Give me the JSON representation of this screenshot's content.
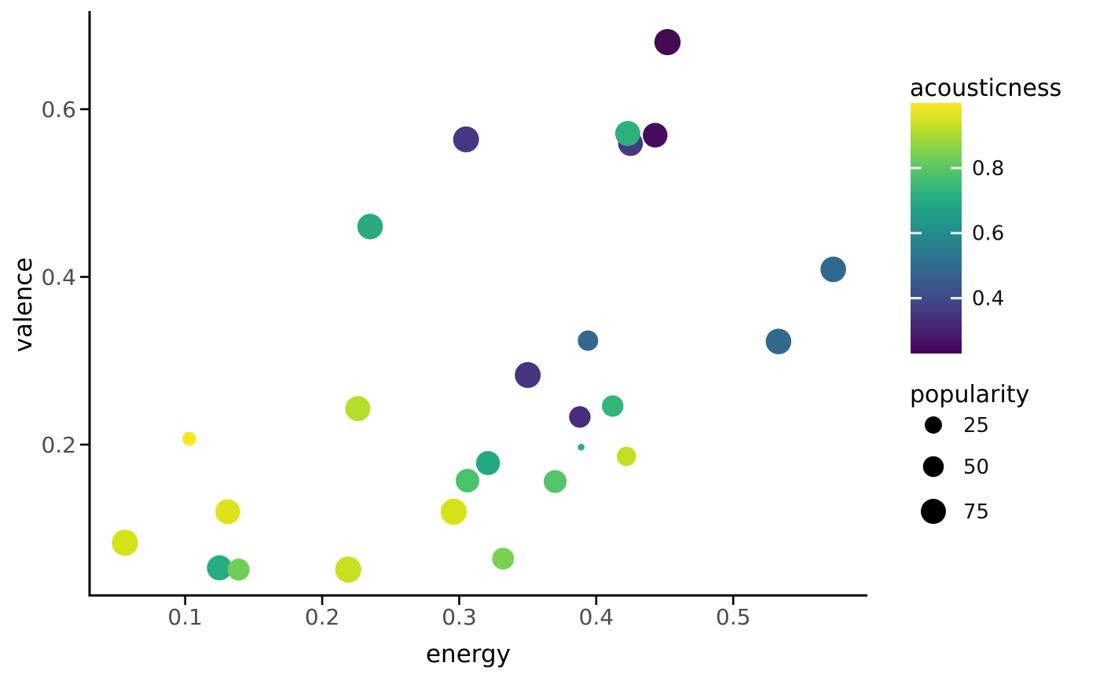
{
  "chart_data": {
    "type": "scatter",
    "title": "",
    "xlabel": "energy",
    "ylabel": "valence",
    "x_axis": {
      "ticks": [
        0.1,
        0.2,
        0.3,
        0.4,
        0.5
      ],
      "range": [
        0.03,
        0.598
      ],
      "grid": false
    },
    "y_axis": {
      "ticks": [
        0.6,
        0.4,
        0.2
      ],
      "range": [
        0.02,
        0.717
      ],
      "grid": false
    },
    "color_legend": {
      "title": "acousticness",
      "colormap": "viridis",
      "domain": [
        0.23,
        1.0
      ],
      "ticks": [
        0.8,
        0.6,
        0.4
      ],
      "tick_dash_color": "#e8e8e8"
    },
    "size_legend": {
      "title": "popularity",
      "items": [
        {
          "label": "25",
          "r": 11.0
        },
        {
          "label": "50",
          "r": 13.3
        },
        {
          "label": "75",
          "r": 16.0
        }
      ],
      "dot_color": "#000000"
    },
    "points": [
      {
        "energy": 0.452,
        "valence": 0.68,
        "acousticness": 0.25,
        "popularity": 82,
        "color": "#440a54",
        "r": 16.7
      },
      {
        "energy": 0.305,
        "valence": 0.564,
        "acousticness": 0.51,
        "popularity": 80,
        "color": "#453781",
        "r": 16.5
      },
      {
        "energy": 0.425,
        "valence": 0.559,
        "acousticness": 0.52,
        "popularity": 73,
        "color": "#443983",
        "r": 15.8
      },
      {
        "energy": 0.443,
        "valence": 0.569,
        "acousticness": 0.28,
        "popularity": 72,
        "color": "#460b5e",
        "r": 15.7
      },
      {
        "energy": 0.423,
        "valence": 0.571,
        "acousticness": 0.72,
        "popularity": 75,
        "color": "#2cb17e",
        "r": 16.0
      },
      {
        "energy": 0.235,
        "valence": 0.46,
        "acousticness": 0.71,
        "popularity": 78,
        "color": "#2bab7d",
        "r": 16.3
      },
      {
        "energy": 0.573,
        "valence": 0.409,
        "acousticness": 0.54,
        "popularity": 78,
        "color": "#31688e",
        "r": 16.3
      },
      {
        "energy": 0.533,
        "valence": 0.323,
        "acousticness": 0.54,
        "popularity": 78,
        "color": "#31688e",
        "r": 16.3
      },
      {
        "energy": 0.394,
        "valence": 0.324,
        "acousticness": 0.53,
        "popularity": 45,
        "color": "#33678d",
        "r": 13.0
      },
      {
        "energy": 0.35,
        "valence": 0.283,
        "acousticness": 0.5,
        "popularity": 80,
        "color": "#453580",
        "r": 16.5
      },
      {
        "energy": 0.226,
        "valence": 0.243,
        "acousticness": 0.89,
        "popularity": 75,
        "color": "#b5de2b",
        "r": 16.0
      },
      {
        "energy": 0.388,
        "valence": 0.233,
        "acousticness": 0.45,
        "popularity": 52,
        "color": "#472d7b",
        "r": 13.7
      },
      {
        "energy": 0.412,
        "valence": 0.246,
        "acousticness": 0.74,
        "popularity": 52,
        "color": "#31b57b",
        "r": 13.7
      },
      {
        "energy": 0.103,
        "valence": 0.207,
        "acousticness": 0.98,
        "popularity": 5,
        "color": "#f8e621",
        "r": 8.8
      },
      {
        "energy": 0.389,
        "valence": 0.197,
        "acousticness": 0.73,
        "popularity": 1,
        "color": "#2eb37c",
        "r": 4.3
      },
      {
        "energy": 0.422,
        "valence": 0.186,
        "acousticness": 0.91,
        "popularity": 38,
        "color": "#c2df23",
        "r": 12.3
      },
      {
        "energy": 0.321,
        "valence": 0.178,
        "acousticness": 0.69,
        "popularity": 68,
        "color": "#22a884",
        "r": 15.3
      },
      {
        "energy": 0.306,
        "valence": 0.157,
        "acousticness": 0.79,
        "popularity": 65,
        "color": "#4ac16d",
        "r": 15.0
      },
      {
        "energy": 0.37,
        "valence": 0.156,
        "acousticness": 0.81,
        "popularity": 61,
        "color": "#54c568",
        "r": 14.6
      },
      {
        "energy": 0.296,
        "valence": 0.12,
        "acousticness": 0.94,
        "popularity": 82,
        "color": "#d8e219",
        "r": 16.7
      },
      {
        "energy": 0.131,
        "valence": 0.12,
        "acousticness": 0.95,
        "popularity": 73,
        "color": "#dde318",
        "r": 15.8
      },
      {
        "energy": 0.056,
        "valence": 0.083,
        "acousticness": 0.94,
        "popularity": 82,
        "color": "#d5e21a",
        "r": 16.7
      },
      {
        "energy": 0.125,
        "valence": 0.053,
        "acousticness": 0.71,
        "popularity": 75,
        "color": "#27ad81",
        "r": 16.0
      },
      {
        "energy": 0.139,
        "valence": 0.051,
        "acousticness": 0.83,
        "popularity": 55,
        "color": "#6ece58",
        "r": 14.0
      },
      {
        "energy": 0.219,
        "valence": 0.051,
        "acousticness": 0.92,
        "popularity": 82,
        "color": "#c8e020",
        "r": 16.7
      },
      {
        "energy": 0.332,
        "valence": 0.064,
        "acousticness": 0.84,
        "popularity": 55,
        "color": "#7ad151",
        "r": 14.0
      }
    ]
  },
  "colors": {
    "background": "#ffffff",
    "axis_line": "#000000",
    "tick_label": "#4d4d4d"
  }
}
